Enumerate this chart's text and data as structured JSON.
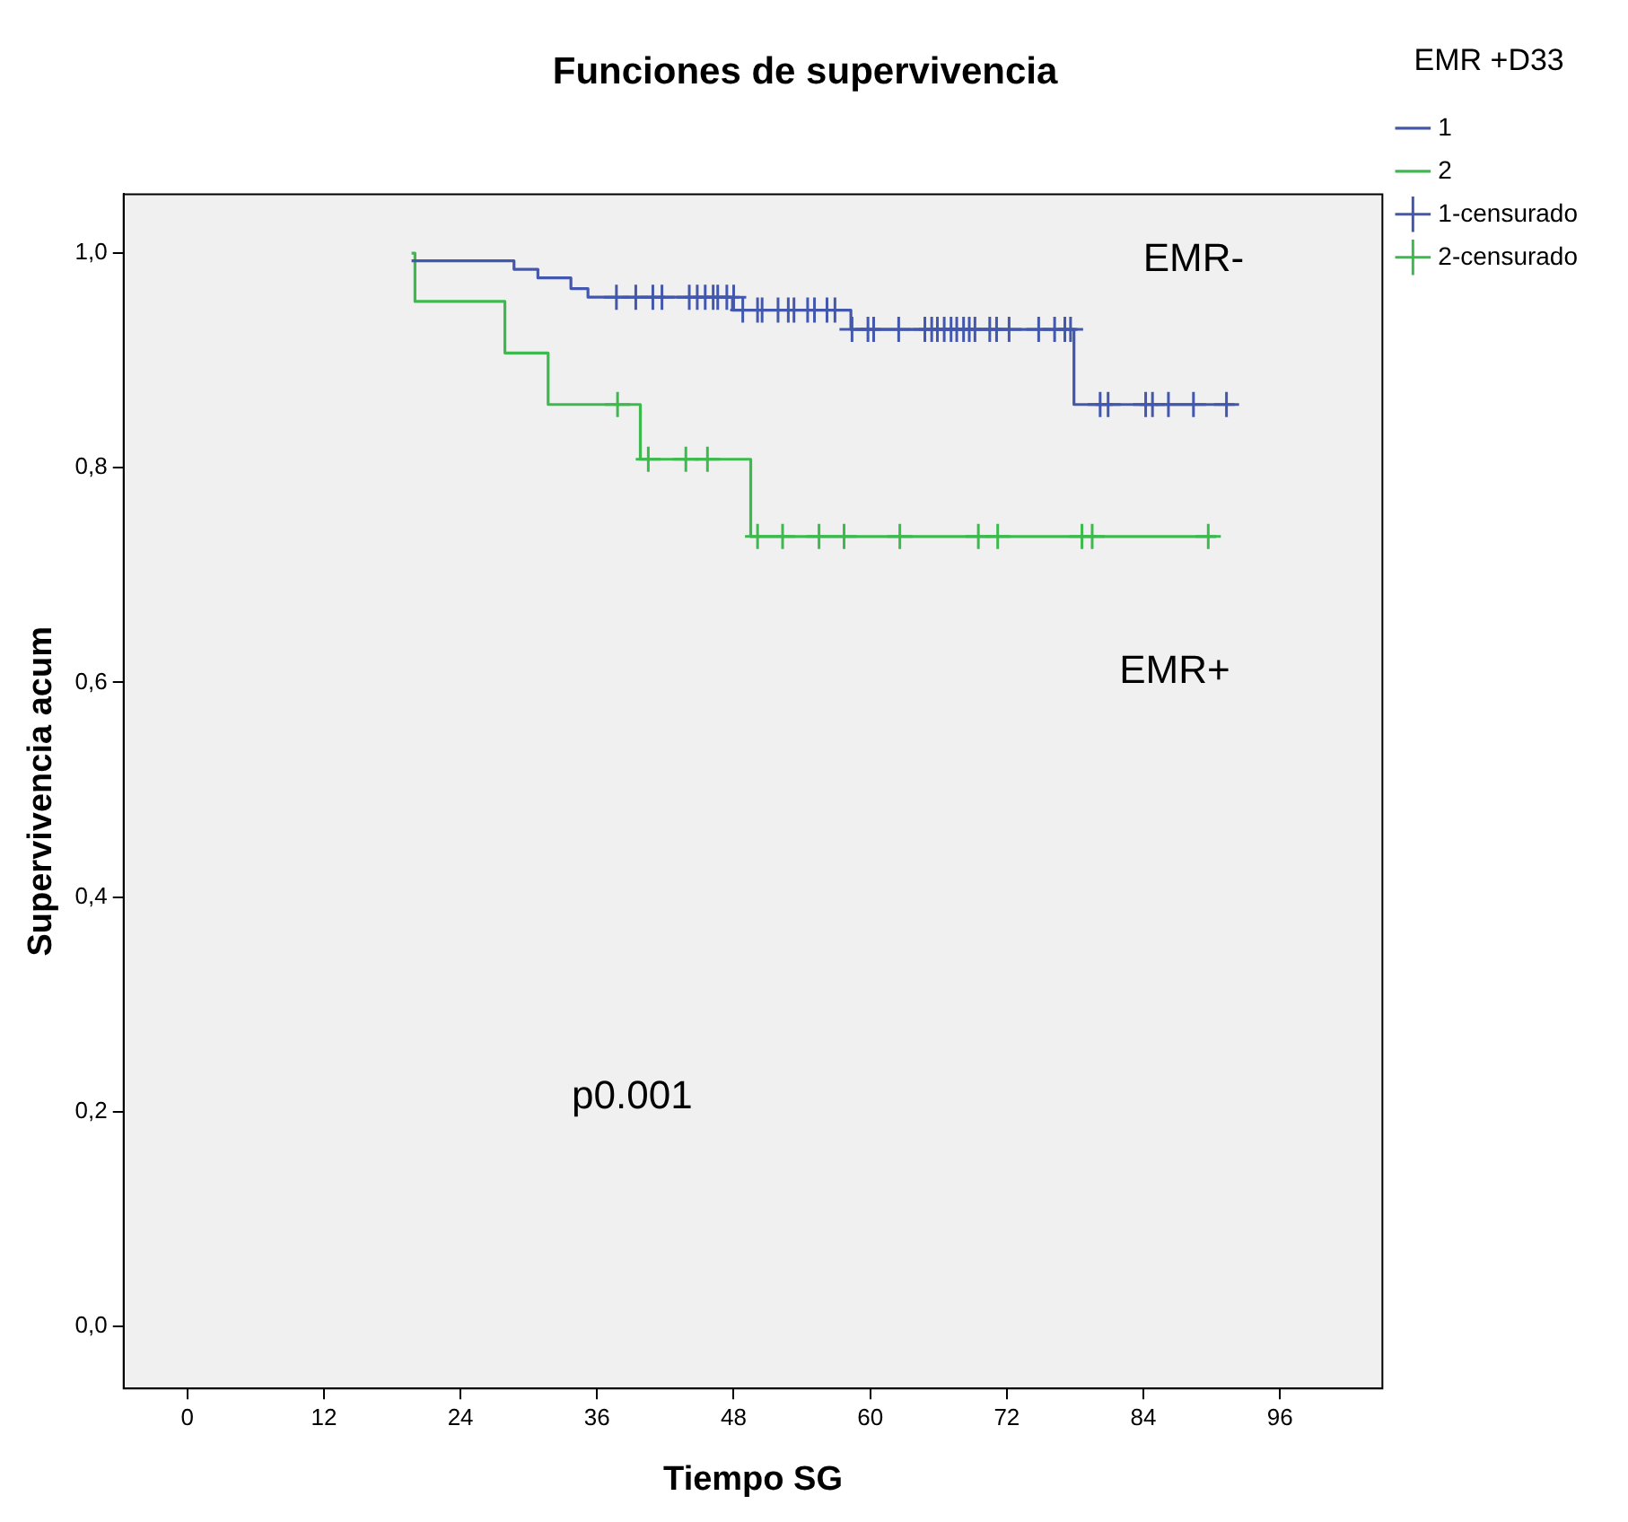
{
  "chart_data": {
    "type": "step",
    "title": "Funciones de supervivencia",
    "xlabel": "Tiempo SG",
    "ylabel": "Supervivencia acum",
    "legend_title": "EMR +D33",
    "legend": "top right",
    "grid": false,
    "xlim": [
      -5.6,
      105
    ],
    "xticks": [
      0,
      12,
      24,
      36,
      48,
      60,
      72,
      84,
      96
    ],
    "ylim": [
      -0.058,
      1.055
    ],
    "yticks": [
      {
        "value": 0,
        "label": "0,0"
      },
      {
        "value": 0.2,
        "label": "0,2"
      },
      {
        "value": 0.4,
        "label": "0,4"
      },
      {
        "value": 0.6,
        "label": "0,6"
      },
      {
        "value": 0.8,
        "label": "0,8"
      },
      {
        "value": 1,
        "label": "1,0"
      }
    ],
    "series": [
      {
        "name": "1",
        "color": "#4358ad",
        "x": [
          19.7,
          28.7,
          30.8,
          33.7,
          35.2,
          47.9,
          58.3,
          77.9,
          92
        ],
        "values": [
          0.993,
          0.985,
          0.977,
          0.967,
          0.959,
          0.947,
          0.929,
          0.859,
          0.859
        ]
      },
      {
        "name": "2",
        "color": "#3dba4e",
        "x": [
          19.7,
          20,
          27.9,
          31.7,
          39.8,
          49.5,
          90.4
        ],
        "values": [
          1.0,
          0.955,
          0.907,
          0.859,
          0.808,
          0.736,
          0.736
        ]
      },
      {
        "name": "1-censurado",
        "type": "scatter",
        "marker": "cross",
        "color": "#4358ad",
        "x": [
          37.7,
          39.4,
          40.9,
          41.7,
          44.1,
          44.8,
          45.5,
          46.2,
          46.6,
          47.4,
          48.0,
          48.8,
          50.1,
          50.5,
          51.9,
          52.8,
          53.3,
          54.5,
          55.1,
          56.2,
          56.9,
          58.4,
          59.8,
          60.3,
          62.5,
          64.8,
          65.4,
          65.9,
          66.5,
          67.1,
          67.6,
          68.2,
          68.7,
          69.2,
          70.5,
          71.1,
          72.2,
          74.8,
          76.2,
          77.1,
          77.6,
          80.2,
          80.9,
          84.2,
          84.8,
          86.2,
          88.4,
          91.3
        ],
        "values": [
          0.959,
          0.959,
          0.959,
          0.959,
          0.959,
          0.959,
          0.959,
          0.959,
          0.959,
          0.959,
          0.959,
          0.947,
          0.947,
          0.947,
          0.947,
          0.947,
          0.947,
          0.947,
          0.947,
          0.947,
          0.947,
          0.929,
          0.929,
          0.929,
          0.929,
          0.929,
          0.929,
          0.929,
          0.929,
          0.929,
          0.929,
          0.929,
          0.929,
          0.929,
          0.929,
          0.929,
          0.929,
          0.929,
          0.929,
          0.929,
          0.929,
          0.859,
          0.859,
          0.859,
          0.859,
          0.859,
          0.859,
          0.859
        ]
      },
      {
        "name": "2-censurado",
        "type": "scatter",
        "marker": "cross",
        "color": "#3dba4e",
        "x": [
          37.8,
          40.5,
          43.8,
          45.7,
          50.1,
          52.3,
          55.5,
          57.7,
          62.6,
          69.5,
          71.2,
          78.6,
          79.5,
          89.7
        ],
        "values": [
          0.859,
          0.808,
          0.808,
          0.808,
          0.736,
          0.736,
          0.736,
          0.736,
          0.736,
          0.736,
          0.736,
          0.736,
          0.736,
          0.736
        ]
      }
    ],
    "annotations": [
      "EMR-",
      "EMR+",
      "p0.001"
    ]
  }
}
